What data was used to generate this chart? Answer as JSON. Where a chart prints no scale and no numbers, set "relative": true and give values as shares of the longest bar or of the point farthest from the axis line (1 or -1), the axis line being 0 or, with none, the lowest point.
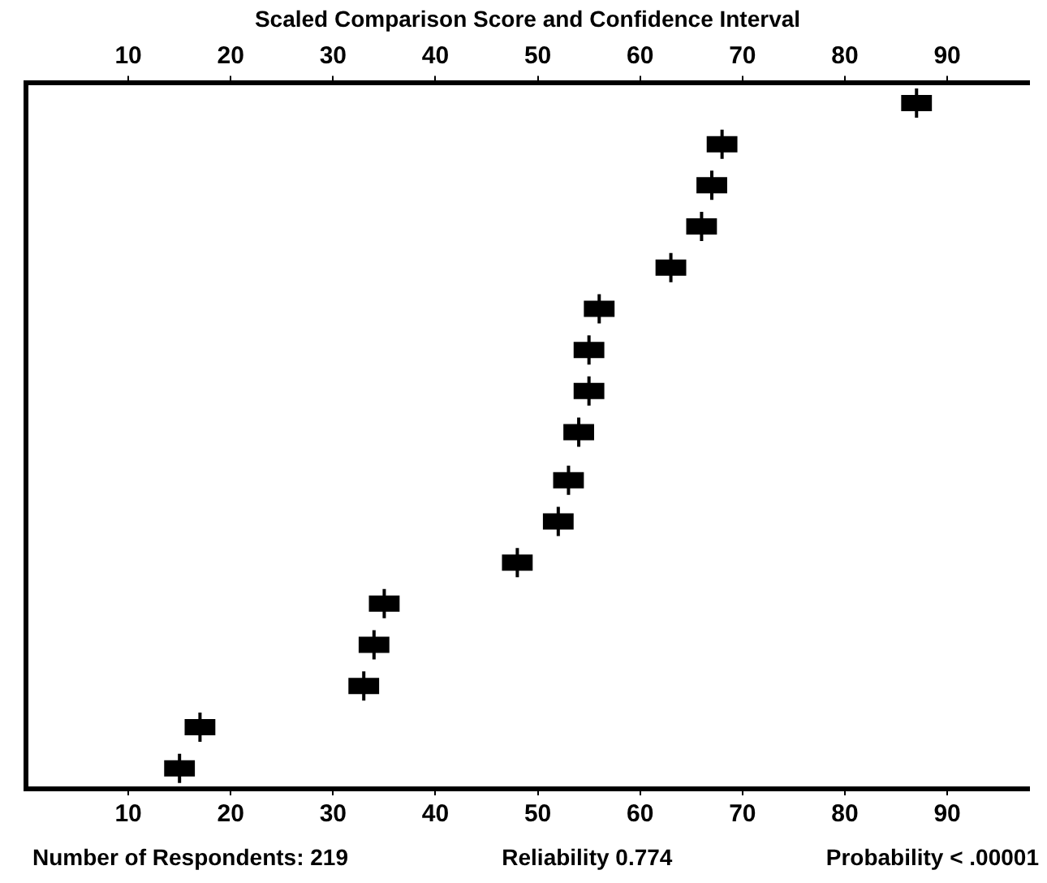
{
  "chart_data": {
    "type": "scatter",
    "x2label": "Scaled Comparison Score and Confidence Interval",
    "relative": true,
    "x": [
      87,
      68,
      67,
      66,
      63,
      56,
      55,
      55,
      54,
      53,
      52,
      48,
      35,
      34,
      33,
      17,
      15
    ],
    "values": [
      1,
      0.94,
      0.88,
      0.82,
      0.76,
      0.7,
      0.64,
      0.58,
      0.52,
      0.45,
      0.39,
      0.33,
      0.27,
      0.21,
      0.15,
      0.09,
      0.03
    ],
    "xerrors": [
      1.5,
      1.5,
      1.5,
      1.5,
      1.5,
      1.5,
      1.5,
      1.5,
      1.5,
      1.5,
      1.5,
      1.5,
      1.5,
      1.5,
      1.5,
      1.5,
      1.5
    ],
    "color": "#000000",
    "marker": "cross",
    "grid": false,
    "legend": false,
    "xlim": [
      0,
      98
    ],
    "xticks": [
      10,
      20,
      30,
      40,
      50,
      60,
      70,
      80,
      90
    ],
    "x2lim": [
      0,
      98
    ],
    "x2ticks": [
      10,
      20,
      30,
      40,
      50,
      60,
      70,
      80,
      90
    ],
    "annotations": [
      "Number of Respondents: 219",
      "Reliability 0.774",
      "Probability < .00001"
    ]
  }
}
